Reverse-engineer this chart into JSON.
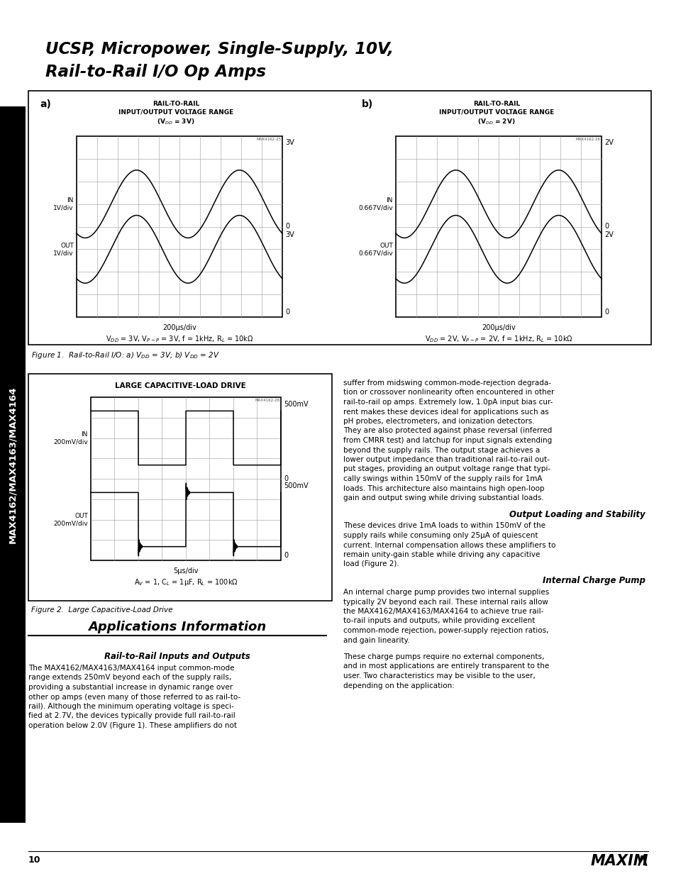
{
  "title_line1": "UCSP, Micropower, Single-Supply, 10V,",
  "title_line2": "Rail-to-Rail I/O Op Amps",
  "sidebar_text": "MAX4162/MAX4163/MAX4164",
  "fig1_label_a": "a)",
  "fig1_label_b": "b)",
  "fig1a_title": "RAIL-TO-RAIL\nINPUT/OUTPUT VOLTAGE RANGE\n(V$_{DD}$ = 3V)",
  "fig1b_title": "RAIL-TO-RAIL\nINPUT/OUTPUT VOLTAGE RANGE\n(V$_{DD}$ = 2V)",
  "fig1a_in_label": "IN\n1V/div",
  "fig1a_out_label": "OUT\n1V/div",
  "fig1a_time": "200μs/div",
  "fig1a_params": "V$_{DD}$ = 3V, V$_{P-P}$ = 3V, f = 1kHz, R$_L$ = 10kΩ",
  "fig1b_in_label": "IN\n0.667V/div",
  "fig1b_out_label": "OUT\n0.667V/div",
  "fig1b_time": "200μs/div",
  "fig1b_params": "V$_{DD}$ = 2V, V$_{P-P}$ = 2V, f = 1kHz, R$_L$ = 10kΩ",
  "fig1a_ytop": "3V",
  "fig1a_ymid": "0",
  "fig1a_ybot_top": "3V",
  "fig1a_ybot": "0",
  "fig1b_ytop": "2V",
  "fig1b_ymid": "0",
  "fig1b_ybot_top": "2V",
  "fig1b_ybot": "0",
  "fig1_watermark_a": "MAX4162-25",
  "fig1_watermark_b": "MAX4162-26",
  "fig1_caption": "Figure 1.  Rail-to-Rail I/O: a) V$_{DD}$ = 3V; b) V$_{DD}$ = 2V",
  "fig2_title": "LARGE CAPACITIVE-LOAD DRIVE",
  "fig2_watermark": "MAX4162-28",
  "fig2_in_label": "IN\n200mV/div",
  "fig2_out_label": "OUT\n200mV/div",
  "fig2_time": "5μs/div",
  "fig2_params": "A$_V$ = 1, C$_L$ = 1μF, R$_L$ = 100kΩ",
  "fig2_y1": "500mV",
  "fig2_y2": "0",
  "fig2_y3": "500mV",
  "fig2_y4": "0",
  "fig2_caption": "Figure 2.  Large Capacitive-Load Drive",
  "section_title": "Applications Information",
  "subsection1": "Rail-to-Rail Inputs and Outputs",
  "body1": "The MAX4162/MAX4163/MAX4164 input common-mode\nrange extends 250mV beyond each of the supply rails,\nproviding a substantial increase in dynamic range over\nother op amps (even many of those referred to as rail-to-\nrail). Although the minimum operating voltage is speci-\nfied at 2.7V, the devices typically provide full rail-to-rail\noperation below 2.0V (Figure 1). These amplifiers do not",
  "body1_right": "suffer from midswing common-mode-rejection degrada-\ntion or crossover nonlinearity often encountered in other\nrail-to-rail op amps. Extremely low, 1.0pA input bias cur-\nrent makes these devices ideal for applications such as\npH probes, electrometers, and ionization detectors.\nThey are also protected against phase reversal (inferred\nfrom CMRR test) and latchup for input signals extending\nbeyond the supply rails. The output stage achieves a\nlower output impedance than traditional rail-to-rail out-\nput stages, providing an output voltage range that typi-\ncally swings within 150mV of the supply rails for 1mA\nloads. This architecture also maintains high open-loop\ngain and output swing while driving substantial loads.",
  "subsection2": "Output Loading and Stability",
  "body2": "These devices drive 1mA loads to within 150mV of the\nsupply rails while consuming only 25μA of quiescent\ncurrent. Internal compensation allows these amplifiers to\nremain unity-gain stable while driving any capacitive\nload (Figure 2).",
  "subsection3": "Internal Charge Pump",
  "body3": "An internal charge pump provides two internal supplies\ntypically 2V beyond each rail. These internal rails allow\nthe MAX4162/MAX4163/MAX4164 to achieve true rail-\nto-rail inputs and outputs, while providing excellent\ncommon-mode rejection, power-supply rejection ratios,\nand gain linearity.",
  "body3b": "These charge pumps require no external components,\nand in most applications are entirely transparent to the\nuser. Two characteristics may be visible to the user,\ndepending on the application:",
  "page_number": "10",
  "bg_color": "#ffffff"
}
